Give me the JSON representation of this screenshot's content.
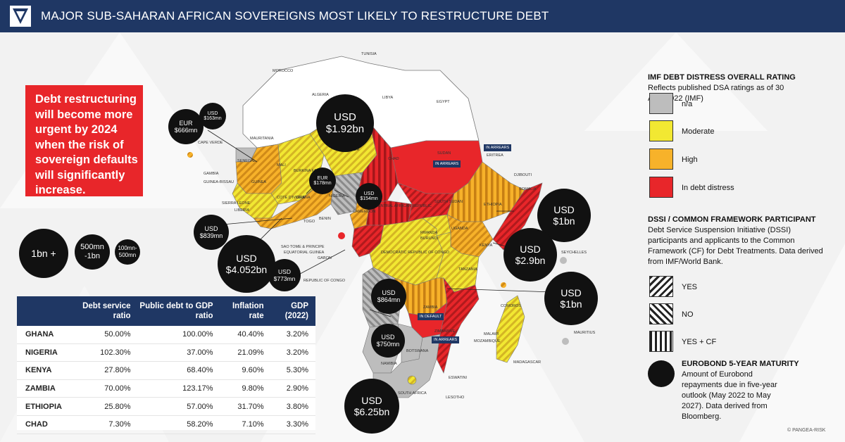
{
  "header": {
    "title": "MAJOR SUB-SAHARAN AFRICAN SOVEREIGNS MOST LIKELY TO RESTRUCTURE DEBT"
  },
  "callout": {
    "text": "Debt restructuring will become more urgent by 2024 when the risk of sovereign defaults will significantly increase."
  },
  "size_legend": [
    {
      "label": "1bn +"
    },
    {
      "label": "500mn -1bn"
    },
    {
      "label": "100mn-500mn"
    }
  ],
  "table": {
    "columns": [
      "",
      "Debt service ratio",
      "Public debt to GDP ratio",
      "Inflation rate",
      "GDP (2022)"
    ],
    "rows": [
      [
        "GHANA",
        "50.00%",
        "100.00%",
        "40.40%",
        "3.20%"
      ],
      [
        "NIGERIA",
        "102.30%",
        "37.00%",
        "21.09%",
        "3.20%"
      ],
      [
        "KENYA",
        "27.80%",
        "68.40%",
        "9.60%",
        "5.30%"
      ],
      [
        "ZAMBIA",
        "70.00%",
        "123.17%",
        "9.80%",
        "2.90%"
      ],
      [
        "ETHIOPIA",
        "25.80%",
        "57.00%",
        "31.70%",
        "3.80%"
      ],
      [
        "CHAD",
        "7.30%",
        "58.20%",
        "7.10%",
        "3.30%"
      ]
    ]
  },
  "map": {
    "countries": {
      "tunisia": "TUNISIA",
      "morocco": "MOROCCO",
      "algeria": "ALGERIA",
      "libya": "LIBYA",
      "egypt": "EGYPT",
      "mauritania": "MAURITANIA",
      "mali": "MALI",
      "niger": "NIGER",
      "chad": "CHAD",
      "sudan": "SUDAN",
      "eritrea": "ERITREA",
      "djibouti": "DJIBOUTI",
      "somalia": "SOMALIA",
      "ethiopia": "ETHIOPIA",
      "south_sudan": "SOUTH SUDAN",
      "car": "CENTRAL AFRICAN REPUBLIC",
      "cameroon": "CAMEROON",
      "nigeria": "NIGERIA",
      "benin": "BENIN",
      "togo": "TOGO",
      "ghana": "GHANA",
      "cote": "COTE D'IVOIRE",
      "liberia": "LIBERIA",
      "sierra": "SIERRA LEONE",
      "guinea": "GUINEA",
      "guinea_bissau": "GUINEA-BISSAU",
      "gambia": "GAMBIA",
      "senegal": "SENEGAL",
      "cape_verde": "CAPE VERDE",
      "burkina": "BURKINA FASO",
      "uganda": "UGANDA",
      "kenya": "KENYA",
      "rwanda": "RWANDA",
      "burundi": "BURUNDI",
      "drc": "DEMOCRATIC REPUBLIC OF CONGO",
      "tanzania": "TANZANIA",
      "seychelles": "SEYCHELLES",
      "comoros": "COMOROS",
      "angola": "ANGOLA",
      "zambia": "ZAMBIA",
      "malawi": "MALAWI",
      "zimbabwe": "ZIMBABWE",
      "mozambique": "MOZAMBIQUE",
      "mauritius": "MAURITIUS",
      "madagascar": "MADAGASCAR",
      "namibia": "NAMIBIA",
      "botswana": "BOTSWANA",
      "eswatini": "ESWATINI",
      "lesotho": "LESOTHO",
      "south_africa": "SOUTH AFRICA",
      "sao_tome": "SAO TOME & PRINCIPE",
      "eq_guinea": "EQUATORIAL GUINEA",
      "gabon": "GABON",
      "congo": "REPUBLIC OF CONGO"
    },
    "tags": {
      "in_arrears": "IN ARREARS",
      "in_default": "IN DEFAULT"
    },
    "bubbles": {
      "eur666": {
        "cur": "EUR",
        "amt": "$666mn"
      },
      "usd163": {
        "cur": "USD",
        "amt": "$163mn"
      },
      "usd192": {
        "cur": "USD",
        "amt": "$1.92bn"
      },
      "eur178": {
        "cur": "EUR",
        "amt": "$178mn"
      },
      "usd154": {
        "cur": "USD",
        "amt": "$154mn"
      },
      "usd839": {
        "cur": "USD",
        "amt": "$839mn"
      },
      "usd4052": {
        "cur": "USD",
        "amt": "$4.052bn"
      },
      "usd773": {
        "cur": "USD",
        "amt": "$773mn"
      },
      "usd864": {
        "cur": "USD",
        "amt": "$864mn"
      },
      "usd750": {
        "cur": "USD",
        "amt": "$750mn"
      },
      "usd625": {
        "cur": "USD",
        "amt": "$6.25bn"
      },
      "usd1a": {
        "cur": "USD",
        "amt": "$1bn"
      },
      "usd29": {
        "cur": "USD",
        "amt": "$2.9bn"
      },
      "usd1b": {
        "cur": "USD",
        "amt": "$1bn"
      }
    }
  },
  "legend": {
    "imf_title": "IMF DEBT DISTRESS OVERALL RATING",
    "imf_sub": "Reflects published DSA ratings as of 30 April 2022 (IMF)",
    "ratings": [
      {
        "label": "n/a",
        "color": "#bdbdbd"
      },
      {
        "label": "Moderate",
        "color": "#f2e832"
      },
      {
        "label": "High",
        "color": "#f7b22a"
      },
      {
        "label": "In debt distress",
        "color": "#e8262a"
      }
    ],
    "dssi_title": "DSSI / COMMON FRAMEWORK PARTICIPANT",
    "dssi_sub": "Debt Service Suspension Initiative (DSSI) participants and applicants to the Common Framework (CF) for Debt Treatments. Data derived from IMF/World Bank.",
    "patterns": [
      {
        "label": "YES"
      },
      {
        "label": "NO"
      },
      {
        "label": "YES + CF"
      }
    ],
    "euro_title": "EUROBOND 5-YEAR MATURITY",
    "euro_sub": "Amount of Eurobond repayments due in five-year outlook (May 2022 to May 2027). Data derived from Bloomberg."
  },
  "copyright": "© PANGEA-RISK"
}
